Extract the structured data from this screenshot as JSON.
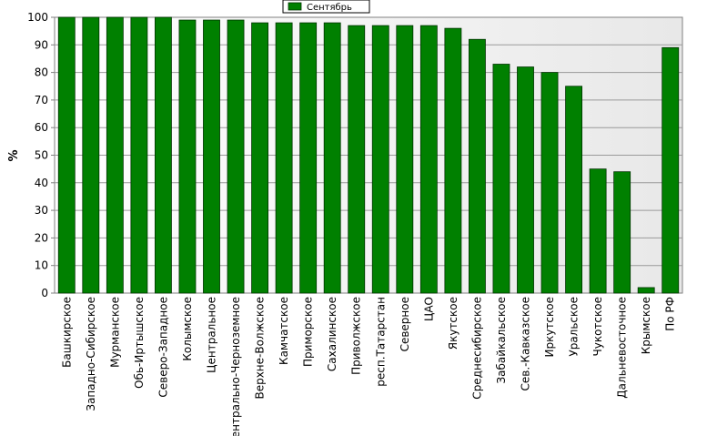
{
  "chart_data": {
    "type": "bar",
    "ylabel": "%",
    "ylim": [
      0,
      100
    ],
    "yticks": [
      0,
      10,
      20,
      30,
      40,
      50,
      60,
      70,
      80,
      90,
      100
    ],
    "grid": true,
    "legend_position": "top-center",
    "colors": {
      "bar": "#008000",
      "bar_edge": "#003300",
      "legend_border": "#000000"
    },
    "categories": [
      "Башкирское",
      "Западно-Сибирское",
      "Мурманское",
      "Обь-Иртышское",
      "Северо-Западное",
      "Колымское",
      "Центральное",
      "Центрально-Черноземное",
      "Верхне-Волжское",
      "Камчатское",
      "Приморское",
      "Сахалинское",
      "Приволжское",
      "респ.Татарстан",
      "Северное",
      "ЦАО",
      "Якутское",
      "Среднесибирское",
      "Забайкальское",
      "Сев.-Кавказское",
      "Иркутское",
      "Уральское",
      "Чукотское",
      "Дальневосточное",
      "Крымское",
      "По РФ"
    ],
    "series": [
      {
        "name": "Сентябрь",
        "values": [
          100,
          100,
          100,
          100,
          100,
          99,
          99,
          99,
          98,
          98,
          98,
          98,
          97,
          97,
          97,
          97,
          96,
          92,
          83,
          82,
          80,
          75,
          45,
          44,
          2,
          89
        ]
      }
    ]
  }
}
